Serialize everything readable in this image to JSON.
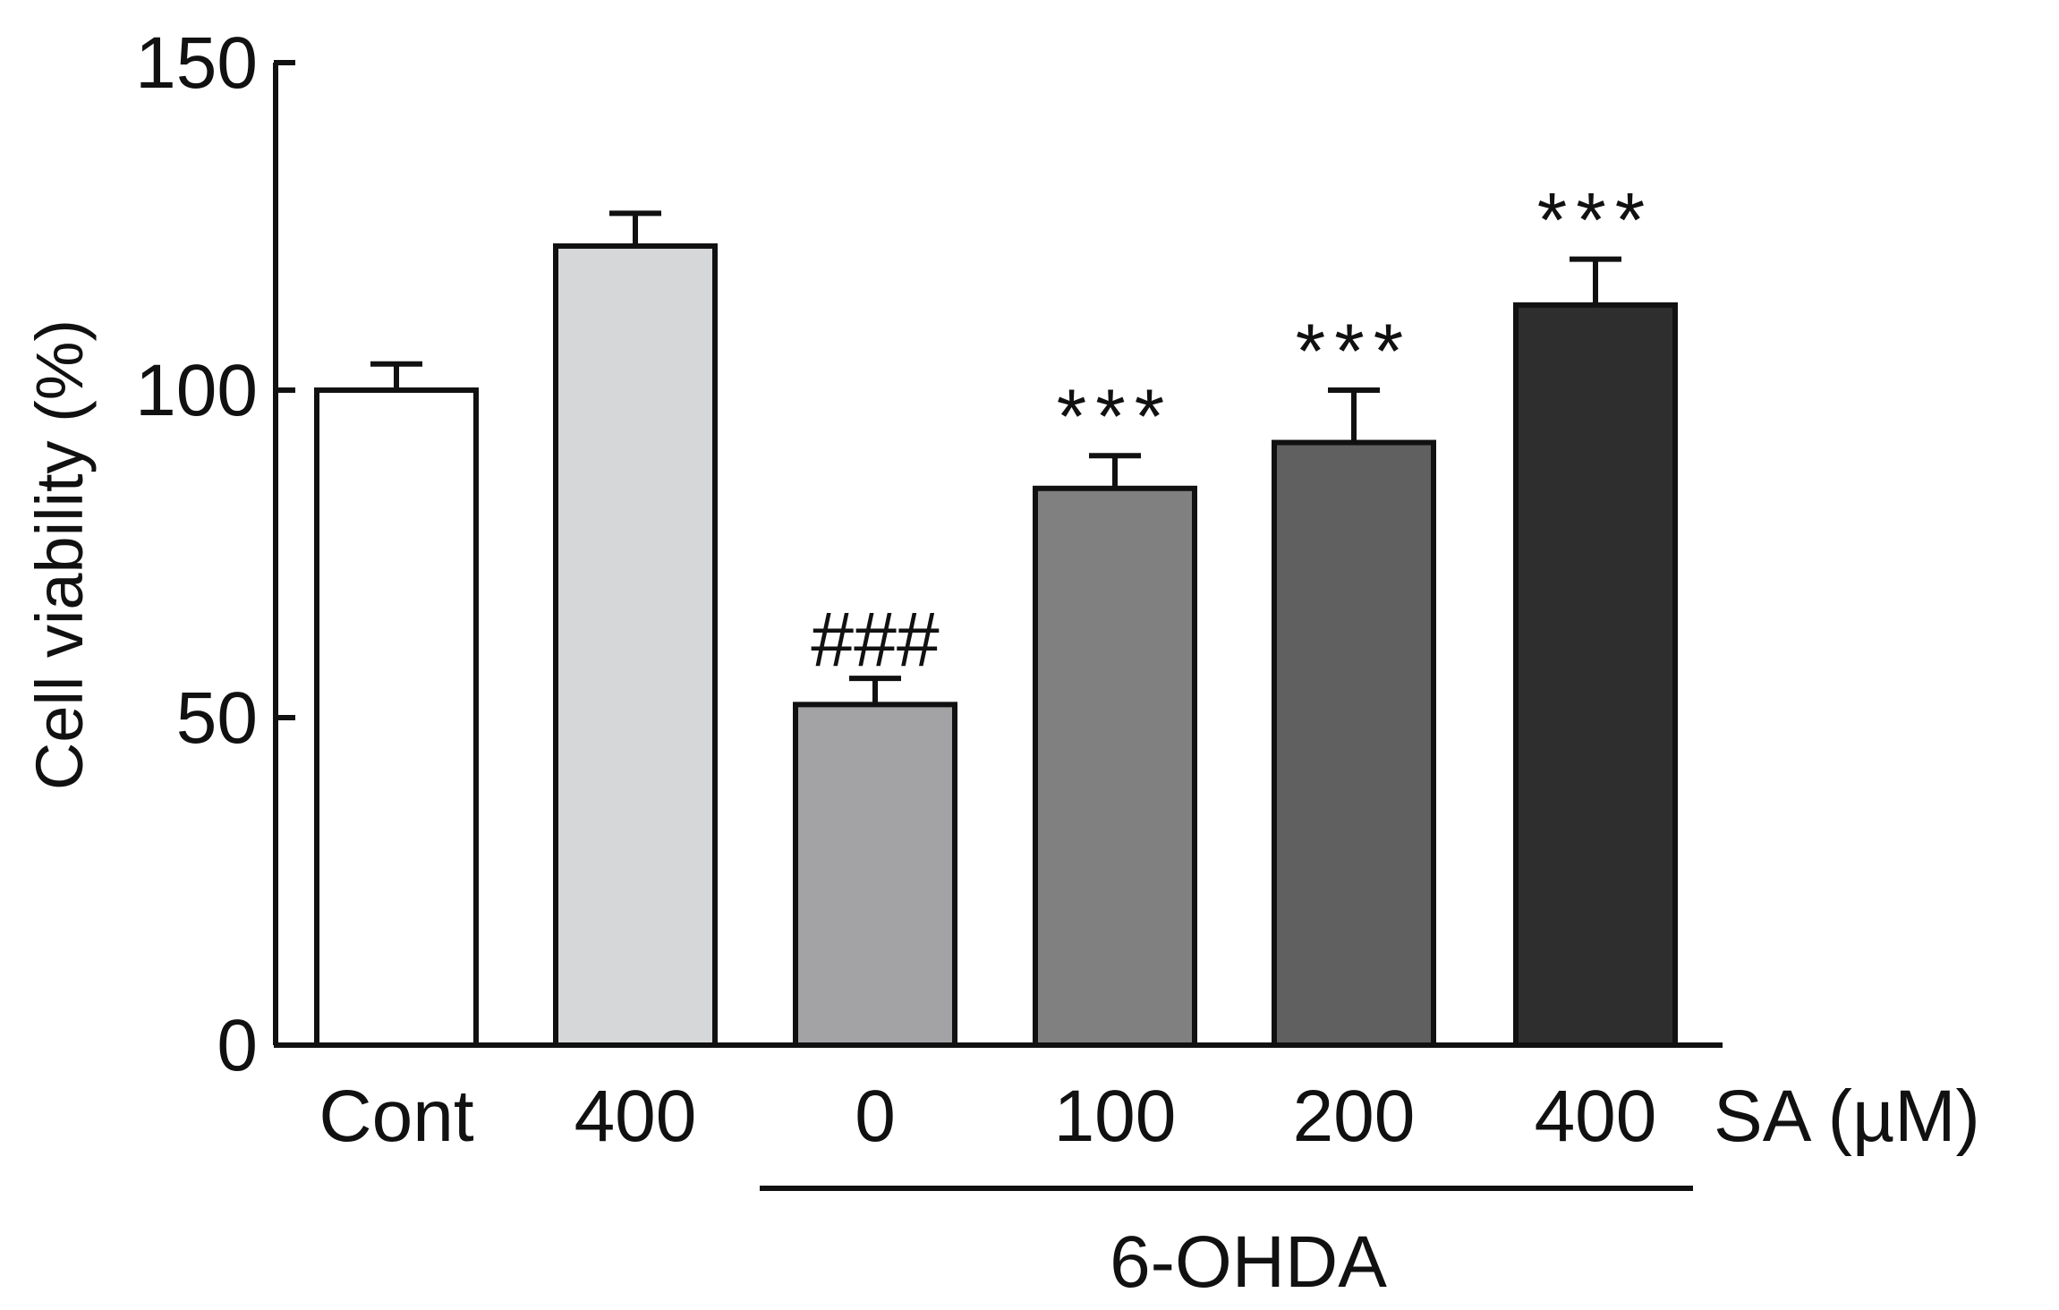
{
  "chart_data": {
    "type": "bar",
    "ylabel": "Cell viability (%)",
    "ylim": [
      0,
      150
    ],
    "yticks": [
      0,
      50,
      100,
      150
    ],
    "categories": [
      "Cont",
      "400",
      "0",
      "100",
      "200",
      "400"
    ],
    "values": [
      100,
      122,
      52,
      85,
      92,
      113
    ],
    "errors": [
      4,
      5,
      4,
      5,
      8,
      7
    ],
    "colors": [
      "#ffffff",
      "#d6d7d8",
      "#a3a3a6",
      "#808080",
      "#606060",
      "#2e2e2e"
    ],
    "annotations": [
      "",
      "",
      "###",
      "***",
      "***",
      "***"
    ],
    "unit_label": "SA (µM)",
    "group_label": "6-OHDA",
    "group_start_index": 2,
    "group_end_index": 5
  }
}
